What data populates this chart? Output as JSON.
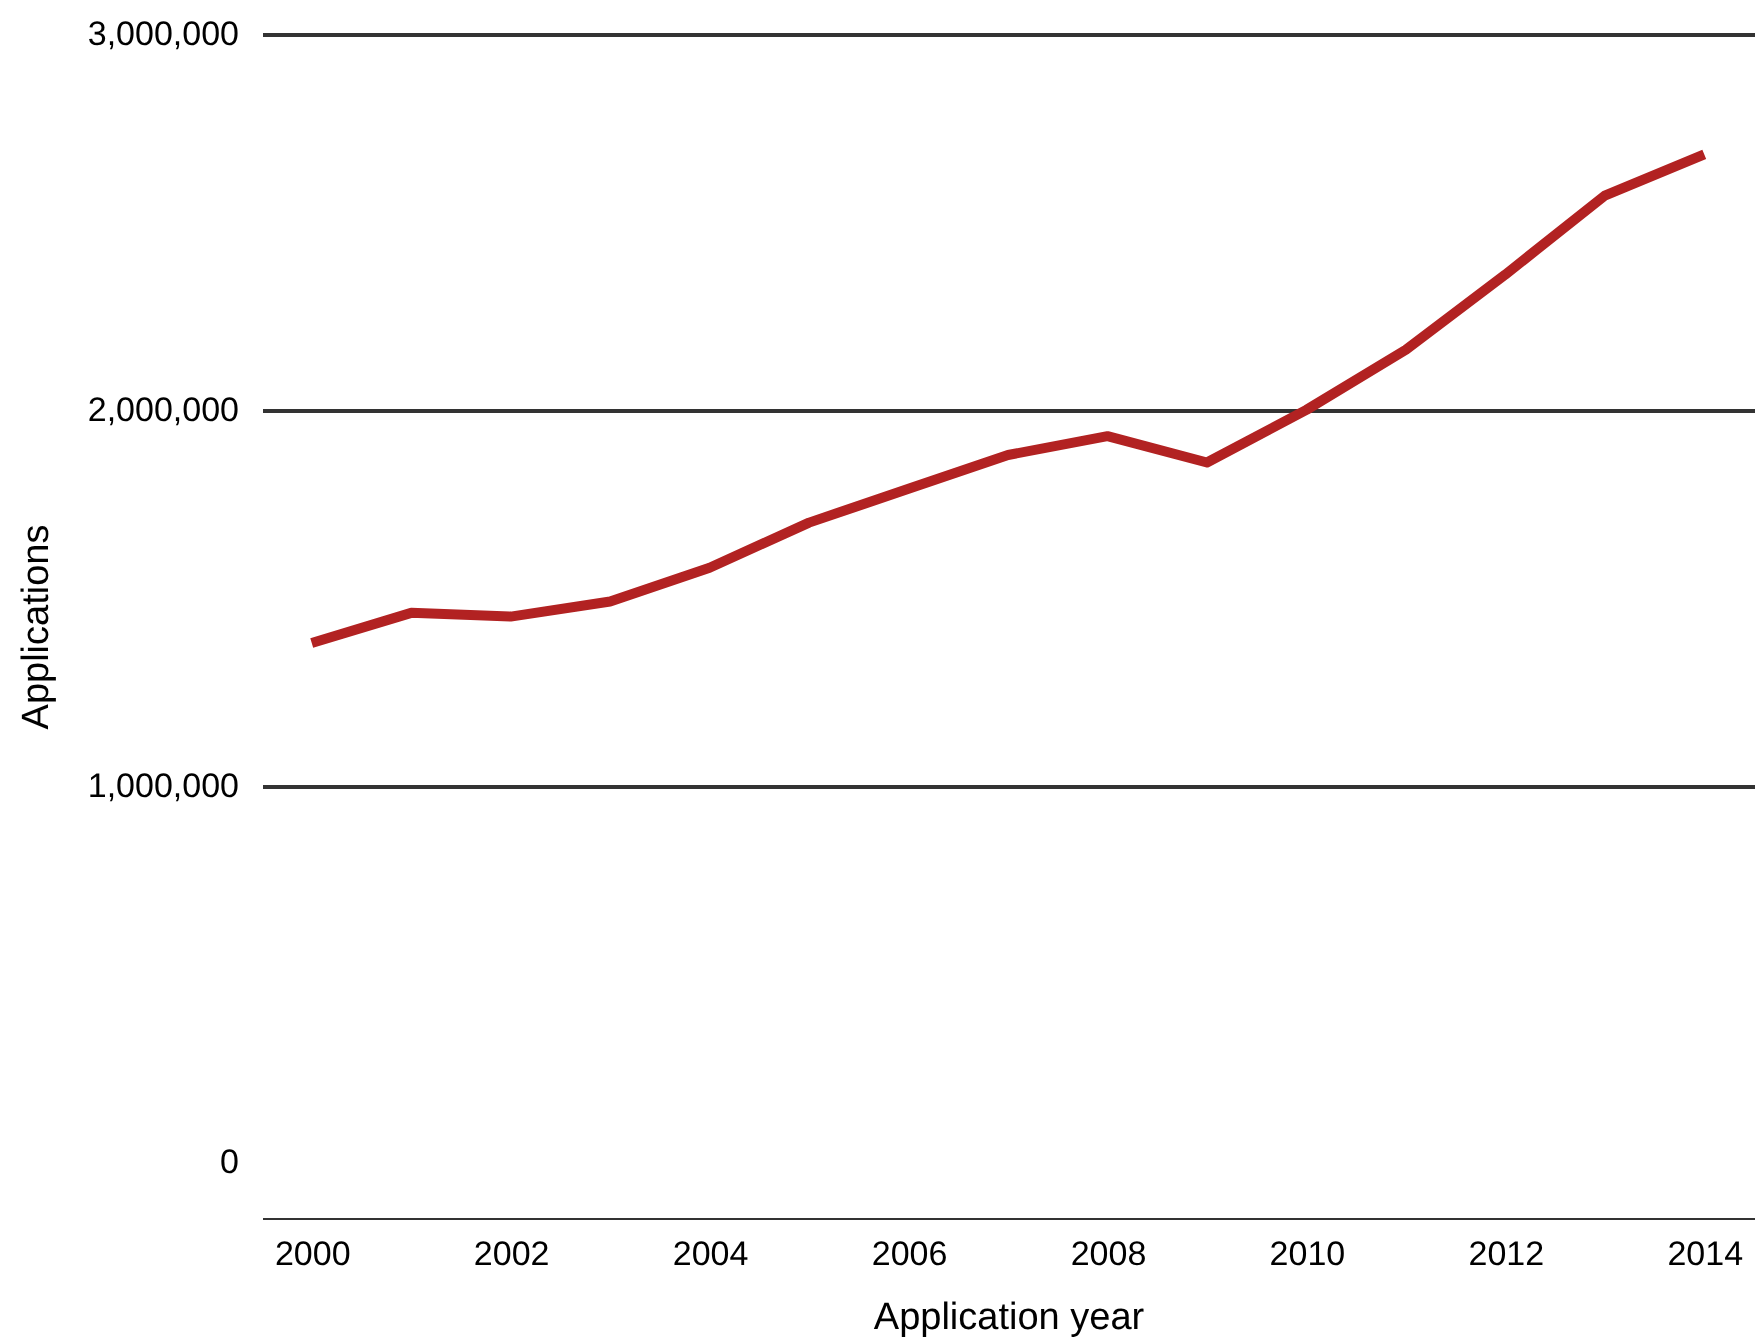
{
  "chart_data": {
    "type": "line",
    "xlabel": "Application year",
    "ylabel": "Applications",
    "x": [
      2000,
      2001,
      2002,
      2003,
      2004,
      2005,
      2006,
      2007,
      2008,
      2009,
      2010,
      2011,
      2012,
      2013,
      2014
    ],
    "series": [
      {
        "color": "#b22222",
        "values": [
          1380000,
          1460000,
          1450000,
          1490000,
          1580000,
          1700000,
          1790000,
          1880000,
          1930000,
          1860000,
          2000000,
          2160000,
          2360000,
          2570000,
          2680000
        ]
      }
    ],
    "xlim": [
      1999.5,
      2014.5
    ],
    "xticks": [
      2000,
      2002,
      2004,
      2006,
      2008,
      2010,
      2012,
      2014
    ],
    "ylim": [
      -150000,
      3000000
    ],
    "yticks": [
      {
        "value": 0,
        "label": "0"
      },
      {
        "value": 1000000,
        "label": "1,000,000"
      },
      {
        "value": 2000000,
        "label": "2,000,000"
      },
      {
        "value": 3000000,
        "label": "3,000,000"
      }
    ],
    "grid": "y",
    "marker": "none",
    "line_style": "solid"
  }
}
